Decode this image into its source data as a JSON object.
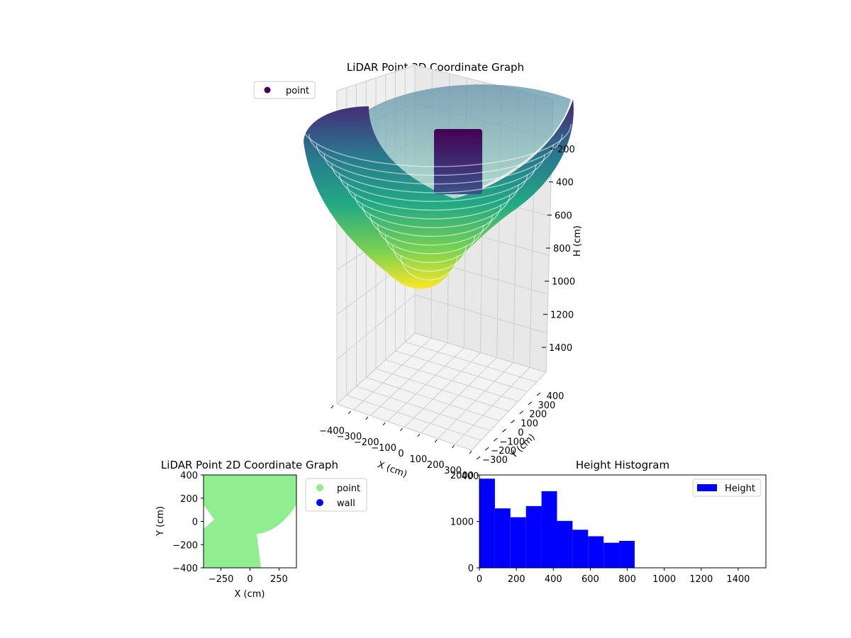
{
  "chart_data": [
    {
      "id": "lidar-3d",
      "type": "scatter",
      "title": "LiDAR Point 3D Coordinate Graph",
      "xlabel": "X (cm)",
      "ylabel": "Y (cm)",
      "zlabel": "H (cm)",
      "xlim": [
        -400,
        400
      ],
      "ylim": [
        -400,
        400
      ],
      "zlim": [
        0,
        1500
      ],
      "z_inverted": true,
      "x_ticks": [
        "−400",
        "−300",
        "−200",
        "−100",
        "0",
        "100",
        "200",
        "300",
        "400"
      ],
      "y_ticks": [
        "−300",
        "−200",
        "−100",
        "0",
        "100",
        "200",
        "300",
        "400"
      ],
      "z_ticks": [
        "200",
        "400",
        "600",
        "800",
        "1000",
        "1200",
        "1400"
      ],
      "colormap": "viridis",
      "legend": {
        "placement": "upper-left",
        "entries": [
          {
            "name": "point",
            "color": "#440154"
          }
        ]
      },
      "grid": true
    },
    {
      "id": "lidar-2d",
      "type": "scatter",
      "title": "LiDAR Point 2D Coordinate Graph",
      "xlabel": "X (cm)",
      "ylabel": "Y (cm)",
      "xlim": [
        -400,
        400
      ],
      "ylim": [
        -400,
        400
      ],
      "x_ticks": [
        -250,
        0,
        250
      ],
      "y_ticks": [
        -400,
        -200,
        0,
        200,
        400
      ],
      "series": [
        {
          "name": "point",
          "color": "#90ee90"
        },
        {
          "name": "wall",
          "color": "#0000ff"
        }
      ],
      "legend": {
        "placement": "outside-right"
      },
      "grid": false
    },
    {
      "id": "height-hist",
      "type": "bar",
      "title": "Height Histogram",
      "xlabel": "",
      "ylabel": "",
      "bin_edges": [
        0,
        84,
        168,
        252,
        336,
        420,
        504,
        588,
        672,
        756,
        840
      ],
      "values": [
        1920,
        1280,
        1090,
        1330,
        1650,
        1010,
        820,
        680,
        540,
        580
      ],
      "xlim": [
        0,
        1550
      ],
      "ylim": [
        0,
        2000
      ],
      "x_ticks": [
        0,
        200,
        400,
        600,
        800,
        1000,
        1200,
        1400
      ],
      "y_ticks": [
        0,
        1000,
        2000
      ],
      "color": "#0000ff",
      "series": [
        {
          "name": "Height",
          "color": "#0000ff"
        }
      ],
      "legend": {
        "placement": "upper-right"
      },
      "grid": false
    }
  ]
}
